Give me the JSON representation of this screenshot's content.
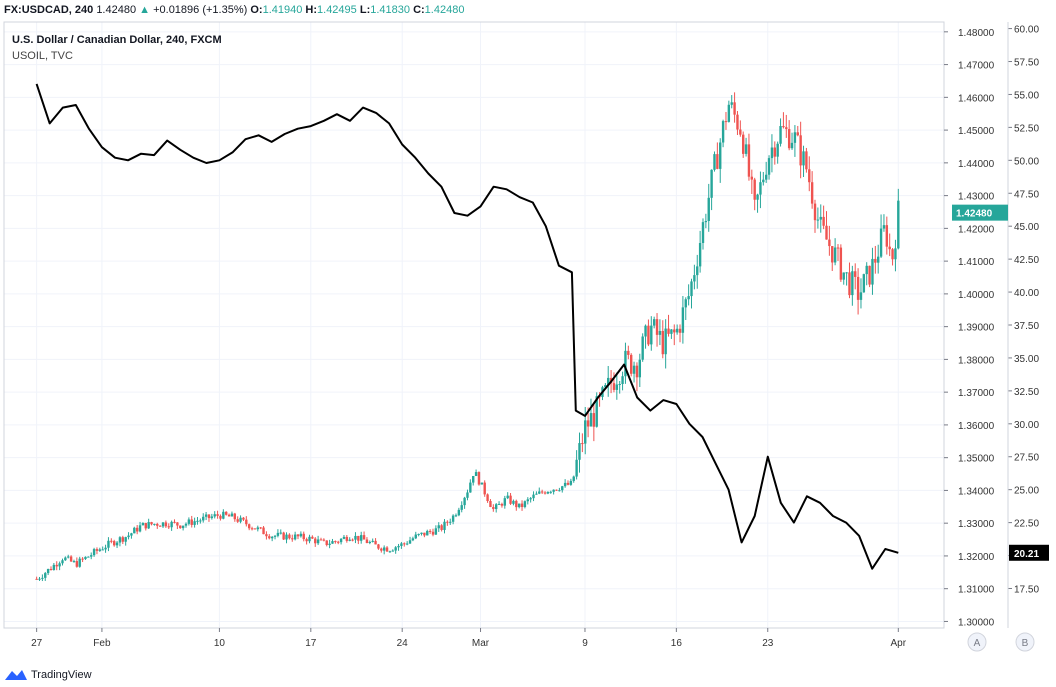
{
  "header": {
    "symbol": "FX:USDCAD, 240",
    "last": "1.42480",
    "arrow": "▲",
    "change": "+0.01896 (+1.35%)",
    "o_label": "O:",
    "o": "1.41940",
    "h_label": "H:",
    "h": "1.42495",
    "l_label": "L:",
    "l": "1.41830",
    "c_label": "C:",
    "c": "1.42480"
  },
  "overlay": {
    "main_title": "U.S. Dollar / Canadian Dollar, 240, FXCM",
    "compare_title": "USOIL, TVC"
  },
  "branding": {
    "name": "TradingView"
  },
  "scale_buttons": [
    "A",
    "B"
  ],
  "colors": {
    "up": "#26a69a",
    "down": "#ef5350",
    "line": "#000000",
    "badge": "#26a69a",
    "grid": "#f0f3fa"
  },
  "chart_data": {
    "type": "candlestick+line",
    "x_ticks": [
      {
        "label": "27",
        "day": 0
      },
      {
        "label": "Feb",
        "day": 5
      },
      {
        "label": "10",
        "day": 14
      },
      {
        "label": "17",
        "day": 21
      },
      {
        "label": "24",
        "day": 28
      },
      {
        "label": "Mar",
        "day": 34
      },
      {
        "label": "9",
        "day": 42
      },
      {
        "label": "16",
        "day": 49
      },
      {
        "label": "23",
        "day": 56
      },
      {
        "label": "Apr",
        "day": 66
      }
    ],
    "y_left": {
      "ticks": [
        "1.48000",
        "1.47000",
        "1.46000",
        "1.45000",
        "1.44000",
        "1.43000",
        "1.42000",
        "1.41000",
        "1.40000",
        "1.39000",
        "1.38000",
        "1.37000",
        "1.36000",
        "1.35000",
        "1.34000",
        "1.33000",
        "1.32000",
        "1.31000",
        "1.30000"
      ],
      "range": [
        1.298,
        1.483
      ]
    },
    "y_right": {
      "ticks": [
        "60.00",
        "57.50",
        "55.00",
        "52.50",
        "50.00",
        "47.50",
        "45.00",
        "42.50",
        "40.00",
        "37.50",
        "35.00",
        "32.50",
        "30.00",
        "27.50",
        "25.00",
        "22.50",
        "20.00",
        "17.50"
      ],
      "range": [
        14.5,
        60.5
      ]
    },
    "last_badge_main": "1.42480",
    "last_badge_compare": "20.21",
    "usdcad_path": [
      [
        0,
        1.313
      ],
      [
        1,
        1.316
      ],
      [
        2,
        1.3195
      ],
      [
        3,
        1.3175
      ],
      [
        4,
        1.32
      ],
      [
        5,
        1.3225
      ],
      [
        6,
        1.3245
      ],
      [
        7,
        1.3262
      ],
      [
        8,
        1.3292
      ],
      [
        9,
        1.3298
      ],
      [
        10,
        1.33
      ],
      [
        11,
        1.3295
      ],
      [
        12,
        1.3305
      ],
      [
        13,
        1.3315
      ],
      [
        14,
        1.3325
      ],
      [
        15,
        1.3318
      ],
      [
        16,
        1.33
      ],
      [
        17,
        1.328
      ],
      [
        18,
        1.3262
      ],
      [
        19,
        1.326
      ],
      [
        20,
        1.3258
      ],
      [
        21,
        1.3252
      ],
      [
        22,
        1.3238
      ],
      [
        23,
        1.3245
      ],
      [
        24,
        1.3262
      ],
      [
        25,
        1.325
      ],
      [
        26,
        1.323
      ],
      [
        27,
        1.3222
      ],
      [
        28,
        1.3235
      ],
      [
        29,
        1.3258
      ],
      [
        30,
        1.3272
      ],
      [
        31,
        1.3285
      ],
      [
        32,
        1.3325
      ],
      [
        33,
        1.34
      ],
      [
        33.5,
        1.346
      ],
      [
        34,
        1.342
      ],
      [
        35,
        1.334
      ],
      [
        36,
        1.3375
      ],
      [
        37,
        1.3348
      ],
      [
        38,
        1.338
      ],
      [
        39,
        1.34
      ],
      [
        40,
        1.341
      ],
      [
        41,
        1.342
      ],
      [
        42,
        1.359
      ],
      [
        43,
        1.365
      ],
      [
        44,
        1.373
      ],
      [
        45,
        1.379
      ],
      [
        46,
        1.379
      ],
      [
        47,
        1.39
      ],
      [
        48,
        1.385
      ],
      [
        49,
        1.388
      ],
      [
        50,
        1.4
      ],
      [
        51,
        1.42
      ],
      [
        52,
        1.44
      ],
      [
        53,
        1.458
      ],
      [
        54,
        1.45
      ],
      [
        55,
        1.425
      ],
      [
        56,
        1.442
      ],
      [
        57,
        1.45
      ],
      [
        58,
        1.448
      ],
      [
        59,
        1.438
      ],
      [
        60,
        1.42
      ],
      [
        61,
        1.413
      ],
      [
        62,
        1.405
      ],
      [
        63,
        1.4
      ],
      [
        64,
        1.408
      ],
      [
        65,
        1.42
      ],
      [
        65.5,
        1.41
      ],
      [
        66,
        1.4248
      ]
    ],
    "usoil_path": [
      [
        0,
        55.8
      ],
      [
        1,
        52.8
      ],
      [
        2,
        54.0
      ],
      [
        3,
        54.2
      ],
      [
        4,
        52.4
      ],
      [
        5,
        51.0
      ],
      [
        6,
        50.2
      ],
      [
        7,
        50.0
      ],
      [
        8,
        50.5
      ],
      [
        9,
        50.4
      ],
      [
        10,
        51.5
      ],
      [
        11,
        50.8
      ],
      [
        12,
        50.2
      ],
      [
        13,
        49.8
      ],
      [
        14,
        50.0
      ],
      [
        15,
        50.6
      ],
      [
        16,
        51.6
      ],
      [
        17,
        51.9
      ],
      [
        18,
        51.4
      ],
      [
        19,
        52.0
      ],
      [
        20,
        52.4
      ],
      [
        21,
        52.6
      ],
      [
        22,
        53.0
      ],
      [
        23,
        53.5
      ],
      [
        24,
        53.0
      ],
      [
        25,
        54.0
      ],
      [
        26,
        53.6
      ],
      [
        27,
        52.8
      ],
      [
        28,
        51.2
      ],
      [
        29,
        50.2
      ],
      [
        30,
        49.0
      ],
      [
        31,
        48.0
      ],
      [
        32,
        46.0
      ],
      [
        33,
        45.8
      ],
      [
        34,
        46.5
      ],
      [
        35,
        48.0
      ],
      [
        36,
        47.8
      ],
      [
        37,
        47.2
      ],
      [
        38,
        46.8
      ],
      [
        39,
        45.0
      ],
      [
        40,
        42.0
      ],
      [
        41,
        41.5
      ],
      [
        41.3,
        31.0
      ],
      [
        42,
        30.6
      ],
      [
        43,
        32.0
      ],
      [
        44,
        33.2
      ],
      [
        45,
        34.5
      ],
      [
        46,
        32.0
      ],
      [
        47,
        31.0
      ],
      [
        48,
        31.8
      ],
      [
        49,
        31.5
      ],
      [
        50,
        30.0
      ],
      [
        51,
        29.0
      ],
      [
        52,
        27.0
      ],
      [
        53,
        25.0
      ],
      [
        54,
        21.0
      ],
      [
        55,
        23.0
      ],
      [
        56,
        27.5
      ],
      [
        57,
        24.0
      ],
      [
        58,
        22.5
      ],
      [
        59,
        24.5
      ],
      [
        60,
        24.0
      ],
      [
        61,
        23.0
      ],
      [
        62,
        22.5
      ],
      [
        63,
        21.5
      ],
      [
        64,
        19.0
      ],
      [
        65,
        20.5
      ],
      [
        66,
        20.21
      ]
    ]
  }
}
